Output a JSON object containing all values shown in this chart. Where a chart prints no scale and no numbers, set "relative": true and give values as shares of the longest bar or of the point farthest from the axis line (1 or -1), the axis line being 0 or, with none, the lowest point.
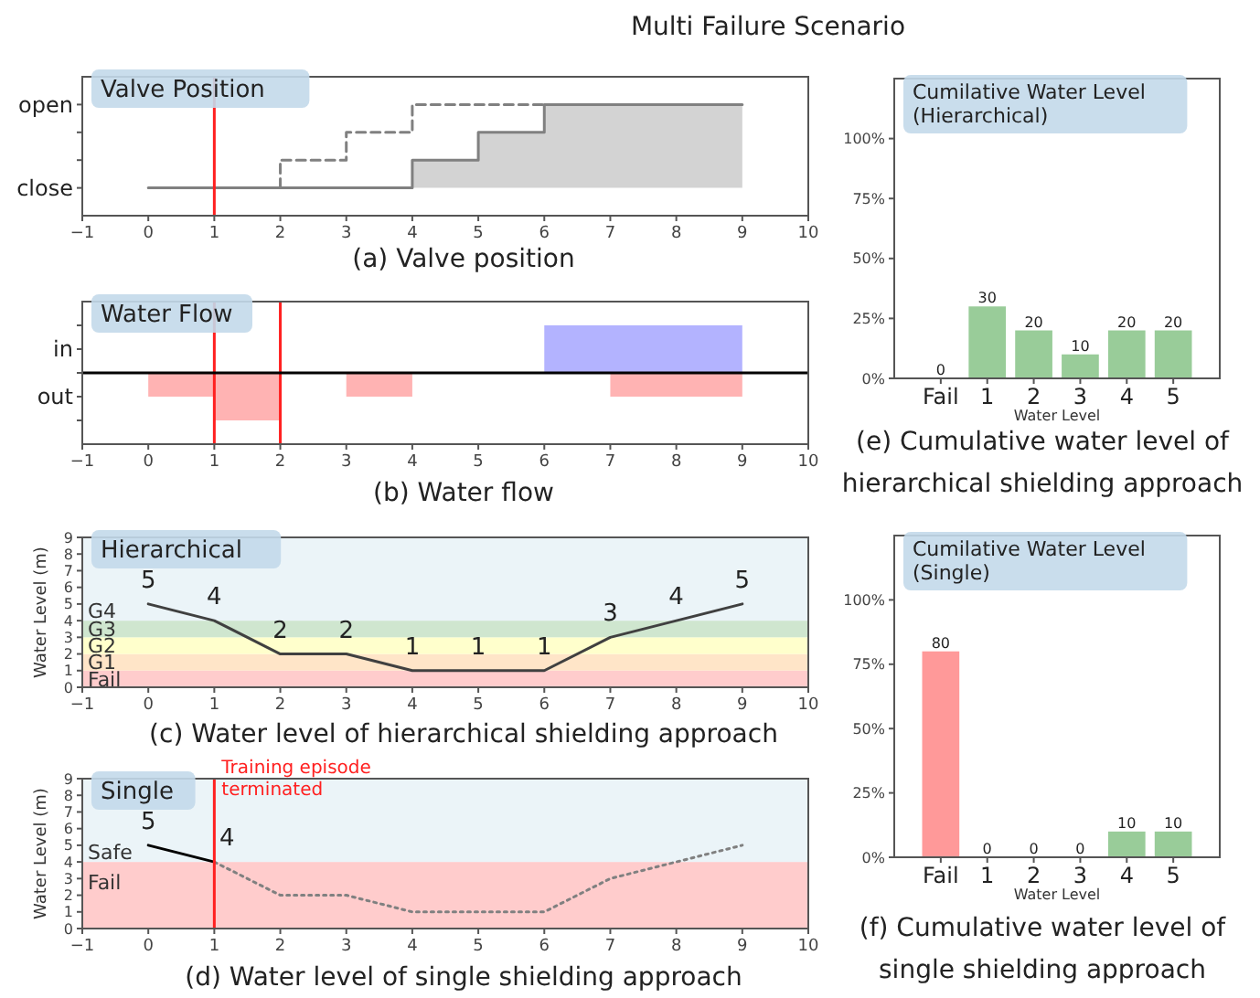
{
  "chart_data": [
    {
      "type": "step",
      "relative": true,
      "title": "Valve Position",
      "subtitle": "Multi Failure Scenario",
      "annotations": [
        "(a) Valve position"
      ],
      "xlim": [
        -1,
        10
      ],
      "xticks": [
        -1,
        0,
        1,
        2,
        3,
        4,
        5,
        6,
        7,
        8,
        9,
        10
      ],
      "y_categories": [
        "open",
        null,
        null,
        "close"
      ],
      "series": [
        {
          "type": "area",
          "color": "#d3d3d3",
          "x": [
            4,
            4,
            5,
            6,
            9,
            9
          ],
          "values": [
            0.25,
            0.5,
            0.75,
            1,
            1,
            0.25
          ]
        },
        {
          "type": "step",
          "color": "#808080",
          "x": [
            0,
            4,
            5,
            6,
            9
          ],
          "values": [
            0.25,
            0.5,
            0.75,
            1,
            1
          ]
        },
        {
          "type": "step",
          "color": "#808080",
          "line_style": "dashed",
          "x": [
            2,
            2,
            3,
            4,
            6
          ],
          "values": [
            0.25,
            0.5,
            0.75,
            1,
            1
          ]
        }
      ],
      "ref_lines": [
        {
          "axis": "x",
          "value": 1,
          "color": "#ff2020"
        }
      ]
    },
    {
      "type": "step",
      "relative": true,
      "title": "Water Flow",
      "annotations": [
        "(b) Water flow"
      ],
      "xlim": [
        -1,
        10
      ],
      "xticks": [
        -1,
        0,
        1,
        2,
        3,
        4,
        5,
        6,
        7,
        8,
        9,
        10
      ],
      "y_categories": [
        null,
        "in",
        null,
        "out",
        null
      ],
      "series": [
        {
          "type": "area",
          "color": "#b3b3ff",
          "x": [
            6,
            6,
            9,
            9
          ],
          "values": [
            0,
            1,
            1,
            0
          ]
        },
        {
          "type": "area",
          "color": "#ffb3b3",
          "x": [
            0,
            0,
            1,
            2,
            3,
            4,
            7,
            9,
            9
          ],
          "values": [
            0,
            -0.5,
            -1,
            0,
            -0.5,
            0,
            -0.5,
            -0.5,
            0
          ]
        }
      ],
      "ref_lines": [
        {
          "axis": "x",
          "value": 1,
          "color": "#ff2020"
        },
        {
          "axis": "x",
          "value": 2,
          "color": "#ff2020"
        }
      ]
    },
    {
      "type": "line",
      "title": "Hierarchical",
      "ylabel": "Water Level (m)",
      "annotations": [
        "(c) Water level of hierarchical shielding approach"
      ],
      "xlim": [
        -1,
        10
      ],
      "xticks": [
        -1,
        0,
        1,
        2,
        3,
        4,
        5,
        6,
        7,
        8,
        9,
        10
      ],
      "ylim": [
        0,
        9
      ],
      "yticks": [
        0,
        1,
        2,
        3,
        4,
        5,
        6,
        7,
        8,
        9
      ],
      "data_labels": true,
      "x": [
        0,
        1,
        2,
        3,
        4,
        5,
        6,
        7,
        8,
        9
      ],
      "series": [
        {
          "color": "#404040",
          "values": [
            5,
            4,
            2,
            2,
            1,
            1,
            1,
            3,
            4,
            5
          ]
        }
      ],
      "bands": [
        {
          "axis": "y",
          "from": 0,
          "to": 1,
          "label": "Fail",
          "color": "#ffcccc"
        },
        {
          "axis": "y",
          "from": 1,
          "to": 2,
          "label": "G1",
          "color": "#ffe5c8"
        },
        {
          "axis": "y",
          "from": 2,
          "to": 3,
          "label": "G2",
          "color": "#ffffcc"
        },
        {
          "axis": "y",
          "from": 3,
          "to": 4,
          "label": "G3",
          "color": "#cfe6cf"
        },
        {
          "axis": "y",
          "from": 4,
          "to": 9,
          "label": "G4",
          "color": "#ebf4f8"
        }
      ]
    },
    {
      "type": "line",
      "title": "Single",
      "ylabel": "Water Level (m)",
      "annotations": [
        "(d) Water level of single shielding approach"
      ],
      "xlim": [
        -1,
        10
      ],
      "xticks": [
        -1,
        0,
        1,
        2,
        3,
        4,
        5,
        6,
        7,
        8,
        9,
        10
      ],
      "ylim": [
        0,
        9
      ],
      "yticks": [
        0,
        1,
        2,
        3,
        4,
        5,
        6,
        7,
        8,
        9
      ],
      "series": [
        {
          "color": "#000000",
          "x": [
            0,
            1
          ],
          "values": [
            5,
            4
          ],
          "value_labels": [
            "5",
            "4"
          ]
        },
        {
          "color": "#808080",
          "line_style": "dotted",
          "x": [
            1,
            2,
            3,
            4,
            5,
            6,
            7,
            8,
            9
          ],
          "values": [
            4,
            2,
            2,
            1,
            1,
            1,
            3,
            4,
            5
          ]
        }
      ],
      "bands": [
        {
          "axis": "y",
          "from": 0,
          "to": 4,
          "label": "Fail",
          "color": "#ffcccc"
        },
        {
          "axis": "y",
          "from": 4,
          "to": 9,
          "label": "Safe",
          "color": "#ebf4f8"
        }
      ],
      "ref_lines": [
        {
          "axis": "x",
          "value": 1,
          "color": "#ff2020",
          "label": "Training episode terminated"
        }
      ]
    },
    {
      "type": "bar",
      "title": "Cumilative Water Level (Hierarchical)",
      "xlabel": "Water Level",
      "annotations": [
        "(e) Cumulative water level of hierarchical shielding approach"
      ],
      "categories": [
        "Fail",
        "1",
        "2",
        "3",
        "4",
        "5"
      ],
      "values": [
        0,
        30,
        20,
        10,
        20,
        20
      ],
      "colors": [
        "#ff9999",
        "#99cc99",
        "#99cc99",
        "#99cc99",
        "#99cc99",
        "#99cc99"
      ],
      "ylim": [
        0,
        125
      ],
      "yticks": [
        {
          "value": 0,
          "label": "0%"
        },
        {
          "value": 25,
          "label": "25%"
        },
        {
          "value": 50,
          "label": "50%"
        },
        {
          "value": 75,
          "label": "75%"
        },
        {
          "value": 100,
          "label": "100%"
        }
      ],
      "data_labels": true
    },
    {
      "type": "bar",
      "title": "Cumilative Water Level (Single)",
      "xlabel": "Water Level",
      "annotations": [
        "(f) Cumulative water level of single shielding approach"
      ],
      "categories": [
        "Fail",
        "1",
        "2",
        "3",
        "4",
        "5"
      ],
      "values": [
        80,
        0,
        0,
        0,
        10,
        10
      ],
      "colors": [
        "#ff9999",
        "#99cc99",
        "#99cc99",
        "#99cc99",
        "#99cc99",
        "#99cc99"
      ],
      "ylim": [
        0,
        125
      ],
      "yticks": [
        {
          "value": 0,
          "label": "0%"
        },
        {
          "value": 25,
          "label": "25%"
        },
        {
          "value": 50,
          "label": "50%"
        },
        {
          "value": 75,
          "label": "75%"
        },
        {
          "value": 100,
          "label": "100%"
        }
      ],
      "data_labels": true
    }
  ]
}
